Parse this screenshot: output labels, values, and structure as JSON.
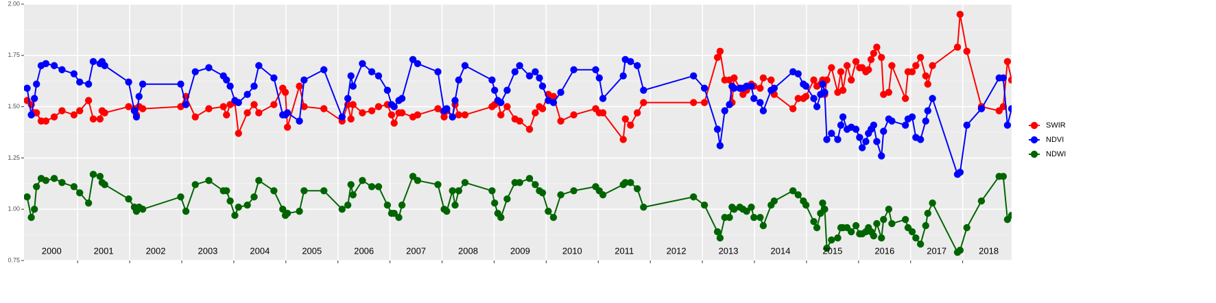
{
  "chart_data": {
    "type": "line",
    "x": [
      2000.03,
      2000.11,
      2000.17,
      2000.21,
      2000.3,
      2000.39,
      2000.55,
      2000.7,
      2000.93,
      2001.04,
      2001.21,
      2001.3,
      2001.43,
      2001.47,
      2001.52,
      2001.98,
      2002.09,
      2002.13,
      2002.18,
      2002.25,
      2002.98,
      2003.08,
      2003.26,
      2003.52,
      2003.8,
      2003.86,
      2003.93,
      2004.02,
      2004.09,
      2004.26,
      2004.39,
      2004.48,
      2004.77,
      2004.94,
      2004.99,
      2005.03,
      2005.26,
      2005.35,
      2005.73,
      2006.08,
      2006.19,
      2006.25,
      2006.29,
      2006.47,
      2006.65,
      2006.78,
      2006.95,
      2007.03,
      2007.08,
      2007.17,
      2007.23,
      2007.44,
      2007.53,
      2007.92,
      2008.04,
      2008.09,
      2008.2,
      2008.25,
      2008.32,
      2008.44,
      2008.96,
      2009.01,
      2009.07,
      2009.13,
      2009.25,
      2009.4,
      2009.49,
      2009.68,
      2009.79,
      2009.87,
      2009.93,
      2010.04,
      2010.14,
      2010.28,
      2010.53,
      2010.95,
      2011.02,
      2011.09,
      2011.48,
      2011.52,
      2011.62,
      2011.75,
      2011.87,
      2012.83,
      2013.04,
      2013.29,
      2013.34,
      2013.43,
      2013.52,
      2013.57,
      2013.61,
      2013.72,
      2013.78,
      2013.85,
      2013.94,
      2013.99,
      2014.11,
      2014.17,
      2014.32,
      2014.38,
      2014.74,
      2014.84,
      2014.94,
      2014.99,
      2015.14,
      2015.2,
      2015.27,
      2015.31,
      2015.35,
      2015.39,
      2015.48,
      2015.6,
      2015.66,
      2015.7,
      2015.78,
      2015.86,
      2015.95,
      2016.02,
      2016.07,
      2016.14,
      2016.19,
      2016.24,
      2016.29,
      2016.35,
      2016.44,
      2016.48,
      2016.58,
      2016.64,
      2016.9,
      2016.95,
      2017.03,
      2017.1,
      2017.19,
      2017.29,
      2017.33,
      2017.42,
      2017.9,
      2017.95,
      2018.08,
      2018.36,
      2018.7,
      2018.78,
      2018.86,
      2018.94
    ],
    "series": [
      {
        "name": "SWIR",
        "color": "#ff0000",
        "values": [
          1.53,
          1.51,
          1.47,
          1.47,
          1.43,
          1.43,
          1.45,
          1.48,
          1.46,
          1.48,
          1.53,
          1.44,
          1.44,
          1.48,
          1.47,
          1.5,
          1.49,
          1.46,
          1.5,
          1.49,
          1.5,
          1.55,
          1.45,
          1.49,
          1.5,
          1.46,
          1.51,
          1.52,
          1.37,
          1.47,
          1.51,
          1.47,
          1.51,
          1.59,
          1.57,
          1.4,
          1.6,
          1.5,
          1.49,
          1.43,
          1.51,
          1.44,
          1.51,
          1.47,
          1.48,
          1.5,
          1.51,
          1.46,
          1.42,
          1.47,
          1.47,
          1.45,
          1.46,
          1.49,
          1.45,
          1.48,
          1.45,
          1.51,
          1.46,
          1.46,
          1.5,
          1.51,
          1.53,
          1.46,
          1.5,
          1.44,
          1.43,
          1.39,
          1.47,
          1.5,
          1.49,
          1.56,
          1.55,
          1.43,
          1.46,
          1.49,
          1.47,
          1.47,
          1.34,
          1.44,
          1.41,
          1.47,
          1.52,
          1.52,
          1.52,
          1.74,
          1.77,
          1.63,
          1.63,
          1.52,
          1.64,
          1.59,
          1.56,
          1.58,
          1.61,
          1.6,
          1.59,
          1.64,
          1.63,
          1.56,
          1.49,
          1.54,
          1.54,
          1.55,
          1.63,
          1.6,
          1.61,
          1.63,
          1.56,
          1.63,
          1.69,
          1.57,
          1.67,
          1.58,
          1.7,
          1.63,
          1.72,
          1.69,
          1.69,
          1.67,
          1.68,
          1.73,
          1.76,
          1.79,
          1.74,
          1.56,
          1.57,
          1.7,
          1.54,
          1.67,
          1.67,
          1.7,
          1.74,
          1.65,
          1.61,
          1.7,
          1.79,
          1.95,
          1.77,
          1.5,
          1.48,
          1.5,
          1.72,
          1.63
        ]
      },
      {
        "name": "NDVI",
        "color": "#0000ff",
        "values": [
          1.59,
          1.46,
          1.54,
          1.61,
          1.7,
          1.71,
          1.7,
          1.68,
          1.66,
          1.62,
          1.61,
          1.72,
          1.71,
          1.72,
          1.7,
          1.62,
          1.48,
          1.45,
          1.55,
          1.61,
          1.61,
          1.51,
          1.67,
          1.69,
          1.65,
          1.63,
          1.6,
          1.53,
          1.52,
          1.56,
          1.6,
          1.7,
          1.64,
          1.46,
          1.46,
          1.47,
          1.43,
          1.63,
          1.68,
          1.45,
          1.54,
          1.65,
          1.6,
          1.71,
          1.67,
          1.65,
          1.58,
          1.51,
          1.5,
          1.53,
          1.54,
          1.73,
          1.71,
          1.67,
          1.48,
          1.49,
          1.45,
          1.53,
          1.63,
          1.7,
          1.63,
          1.58,
          1.53,
          1.52,
          1.58,
          1.67,
          1.7,
          1.65,
          1.67,
          1.64,
          1.6,
          1.53,
          1.52,
          1.57,
          1.68,
          1.68,
          1.64,
          1.54,
          1.65,
          1.73,
          1.72,
          1.7,
          1.58,
          1.65,
          1.59,
          1.39,
          1.31,
          1.48,
          1.51,
          1.6,
          1.59,
          1.59,
          1.59,
          1.6,
          1.6,
          1.54,
          1.52,
          1.48,
          1.58,
          1.59,
          1.67,
          1.66,
          1.61,
          1.6,
          1.54,
          1.5,
          1.56,
          1.61,
          1.57,
          1.34,
          1.37,
          1.34,
          1.41,
          1.45,
          1.39,
          1.4,
          1.39,
          1.35,
          1.3,
          1.33,
          1.37,
          1.39,
          1.41,
          1.33,
          1.26,
          1.38,
          1.44,
          1.43,
          1.41,
          1.44,
          1.45,
          1.35,
          1.34,
          1.43,
          1.48,
          1.54,
          1.17,
          1.18,
          1.41,
          1.49,
          1.64,
          1.64,
          1.41,
          1.49
        ]
      },
      {
        "name": "NDWI",
        "color": "#006400",
        "values": [
          1.06,
          0.96,
          1.0,
          1.11,
          1.15,
          1.14,
          1.15,
          1.13,
          1.11,
          1.08,
          1.03,
          1.17,
          1.16,
          1.13,
          1.12,
          1.05,
          1.01,
          0.99,
          1.01,
          1.0,
          1.06,
          0.99,
          1.12,
          1.14,
          1.09,
          1.09,
          1.04,
          0.97,
          1.01,
          1.02,
          1.06,
          1.14,
          1.09,
          1.0,
          0.97,
          0.98,
          0.99,
          1.09,
          1.09,
          1.0,
          1.02,
          1.12,
          1.07,
          1.14,
          1.11,
          1.11,
          1.02,
          0.98,
          0.98,
          0.96,
          1.02,
          1.16,
          1.14,
          1.12,
          1.0,
          0.99,
          1.09,
          1.02,
          1.09,
          1.13,
          1.09,
          1.03,
          0.98,
          0.96,
          1.05,
          1.13,
          1.13,
          1.15,
          1.12,
          1.09,
          1.08,
          0.99,
          0.96,
          1.07,
          1.09,
          1.11,
          1.09,
          1.07,
          1.12,
          1.13,
          1.13,
          1.1,
          1.01,
          1.06,
          1.02,
          0.89,
          0.86,
          0.96,
          0.96,
          1.01,
          1.0,
          1.01,
          1.0,
          0.99,
          1.01,
          0.96,
          0.96,
          0.92,
          1.02,
          1.04,
          1.09,
          1.07,
          1.04,
          1.02,
          0.94,
          0.91,
          0.98,
          1.03,
          1.0,
          0.81,
          0.85,
          0.86,
          0.91,
          0.91,
          0.91,
          0.89,
          0.92,
          0.88,
          0.88,
          0.89,
          0.91,
          0.89,
          0.87,
          0.93,
          0.86,
          0.95,
          1.0,
          0.93,
          0.95,
          0.91,
          0.89,
          0.86,
          0.83,
          0.92,
          0.98,
          1.03,
          0.79,
          0.8,
          0.91,
          1.04,
          1.16,
          1.16,
          0.95,
          0.97
        ]
      }
    ],
    "xlim": [
      1999.97,
      2018.94
    ],
    "xgrid": [
      2001,
      2002,
      2003,
      2004,
      2005,
      2006,
      2007,
      2008,
      2009,
      2010,
      2011,
      2012,
      2013,
      2014,
      2015,
      2016,
      2017,
      2018
    ],
    "xticks": [
      {
        "value": 2000.5,
        "label": "2000"
      },
      {
        "value": 2001.5,
        "label": "2001"
      },
      {
        "value": 2002.5,
        "label": "2002"
      },
      {
        "value": 2003.5,
        "label": "2003"
      },
      {
        "value": 2004.5,
        "label": "2004"
      },
      {
        "value": 2005.5,
        "label": "2005"
      },
      {
        "value": 2006.5,
        "label": "2006"
      },
      {
        "value": 2007.5,
        "label": "2007"
      },
      {
        "value": 2008.5,
        "label": "2008"
      },
      {
        "value": 2009.5,
        "label": "2009"
      },
      {
        "value": 2010.5,
        "label": "2010"
      },
      {
        "value": 2011.5,
        "label": "2011"
      },
      {
        "value": 2012.5,
        "label": "2012"
      },
      {
        "value": 2013.5,
        "label": "2013"
      },
      {
        "value": 2014.5,
        "label": "2014"
      },
      {
        "value": 2015.5,
        "label": "2015"
      },
      {
        "value": 2016.5,
        "label": "2016"
      },
      {
        "value": 2017.5,
        "label": "2017"
      },
      {
        "value": 2018.5,
        "label": "2018"
      }
    ],
    "ylim": [
      0.75,
      2.0
    ],
    "yticks": [
      {
        "value": 0.75,
        "label": "0.75"
      },
      {
        "value": 1.0,
        "label": "1.00"
      },
      {
        "value": 1.25,
        "label": "1.25"
      },
      {
        "value": 1.5,
        "label": "1.50"
      },
      {
        "value": 1.75,
        "label": "1.75"
      },
      {
        "value": 2.0,
        "label": "2.00"
      }
    ],
    "yminor": [
      0.875,
      1.125,
      1.375,
      1.625,
      1.875
    ],
    "grid": true,
    "legend": "right"
  }
}
